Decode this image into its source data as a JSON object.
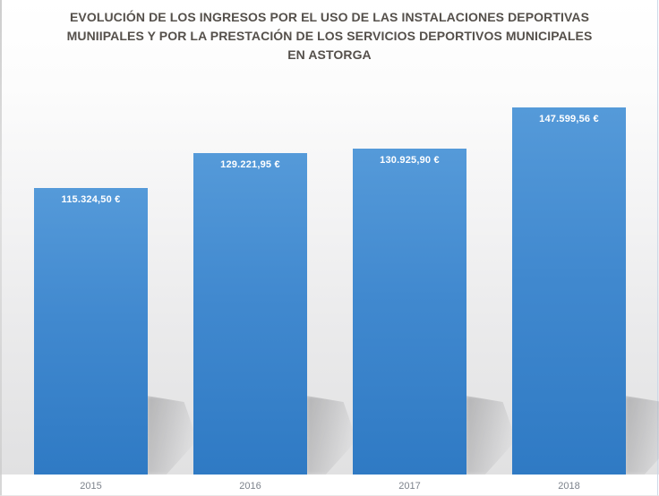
{
  "header": {
    "title_lines": [
      "EVOLUCIÓN DE LOS INGRESOS POR EL USO DE LAS INSTALACIONES DEPORTIVAS",
      "MUNIIPALES Y POR LA PRESTACIÓN DE LOS SERVICIOS DEPORTIVOS MUNICIPALES",
      "EN ASTORGA"
    ]
  },
  "chart_data": {
    "type": "bar",
    "title": "EVOLUCIÓN DE LOS INGRESOS POR EL USO DE LAS INSTALACIONES DEPORTIVAS MUNIIPALES Y POR LA PRESTACIÓN DE LOS SERVICIOS DEPORTIVOS MUNICIPALES EN ASTORGA",
    "categories": [
      "2015",
      "2016",
      "2017",
      "2018"
    ],
    "values": [
      115324.5,
      129221.95,
      130925.9,
      147599.56
    ],
    "value_labels": [
      "115.324,50 €",
      "129.221,95 €",
      "130.925,90 €",
      "147.599,56 €"
    ],
    "xlabel": "",
    "ylabel": "",
    "ylim": [
      0,
      160000
    ],
    "grid": false,
    "legend": false,
    "colors": {
      "bar": "#3c84cc",
      "bar_gradient_top": "#559ad9",
      "bar_gradient_bottom": "#2f7ac4",
      "value_label": "#ffffff",
      "category_label": "#7c828b",
      "title": "#55504b",
      "plot_background_bottom": "#e1e1e2"
    }
  }
}
